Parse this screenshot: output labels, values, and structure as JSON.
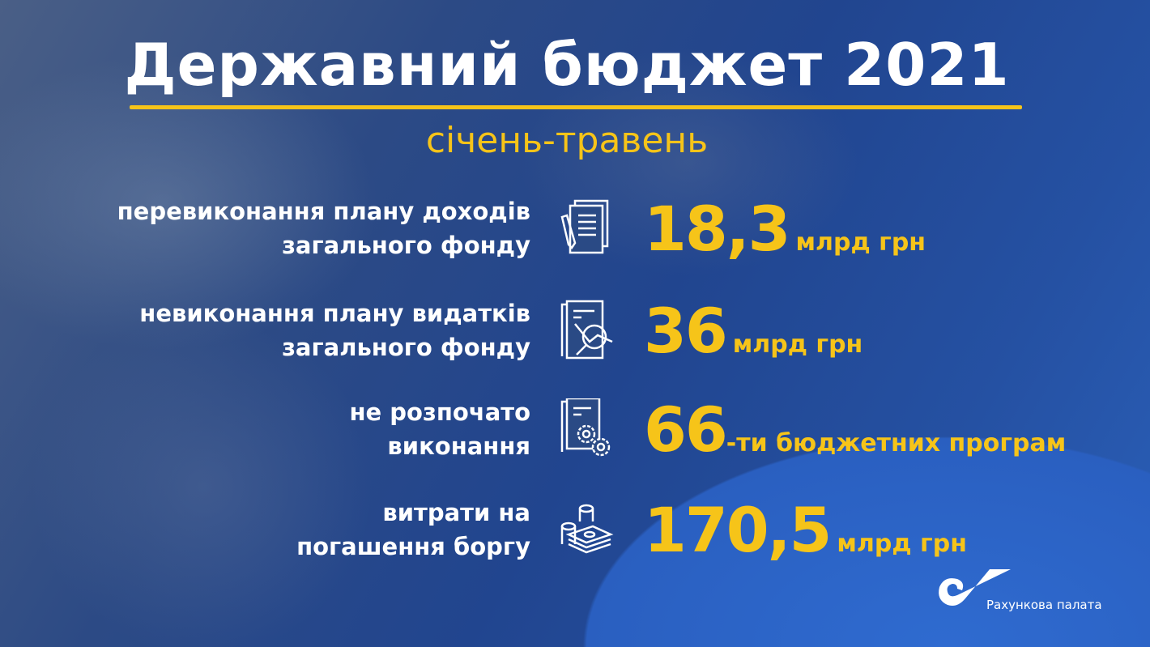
{
  "header": {
    "title": "Державний бюджет 2021",
    "subtitle": "січень-травень"
  },
  "colors": {
    "accent": "#f6c419",
    "background": "#21458f",
    "text": "#ffffff"
  },
  "items": [
    {
      "label_line1": "перевиконання плану доходів",
      "label_line2": "загального фонду",
      "icon": "documents-pen-icon",
      "value": "18,3",
      "unit": "млрд грн"
    },
    {
      "label_line1": "невиконання плану видатків",
      "label_line2": "загального фонду",
      "icon": "document-analysis-icon",
      "value": "36",
      "unit": "млрд грн"
    },
    {
      "label_line1": "не розпочато",
      "label_line2": "виконання",
      "icon": "document-gears-icon",
      "value": "66",
      "unit": "-ти бюджетних програм"
    },
    {
      "label_line1": "витрати на",
      "label_line2": "погашення боргу",
      "icon": "money-stack-icon",
      "value": "170,5",
      "unit": "млрд грн"
    }
  ],
  "footer": {
    "logo_text": "Рахункова палата"
  }
}
